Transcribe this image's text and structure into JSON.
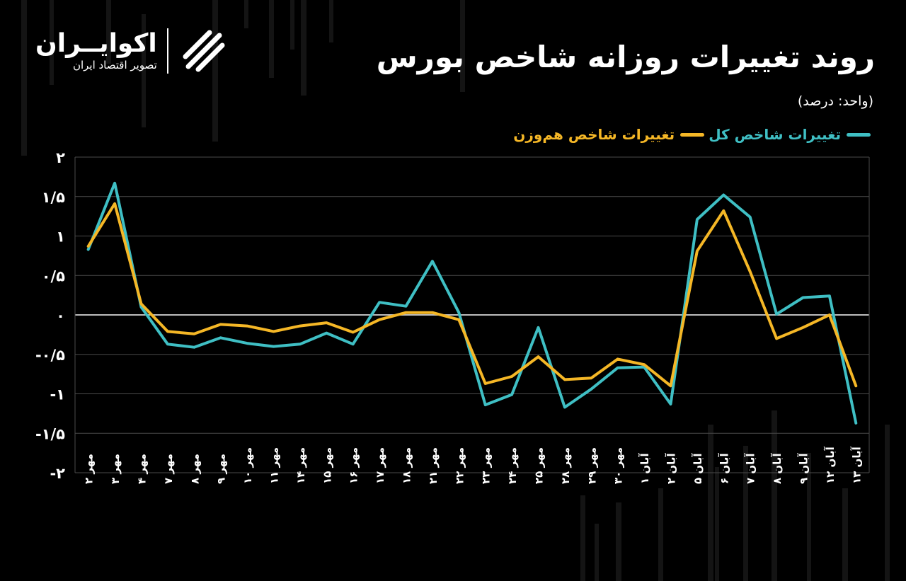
{
  "header": {
    "title": "روند تغییرات روزانه شاخص بورس",
    "unit": "(واحد: درصد)"
  },
  "brand": {
    "name": "اکوایــران",
    "tagline": "تصویر اقتصاد ایران",
    "logo_icon": "ecoiran-swirl-icon"
  },
  "colors": {
    "background": "#000000",
    "total_index": "#3fbfc4",
    "equal_weight_index": "#f5b726",
    "grid": "#4a4a4a",
    "zero_line": "#bdbdbd",
    "text": "#ffffff"
  },
  "chart_data": {
    "type": "line",
    "title": "روند تغییرات روزانه شاخص بورس",
    "subtitle": "(واحد: درصد)",
    "xlabel": "",
    "ylabel": "",
    "ylim": [
      -2,
      2
    ],
    "yticks": [
      2,
      1.5,
      1,
      0.5,
      0,
      -0.5,
      -1,
      -1.5,
      -2
    ],
    "ytick_labels": [
      "۲",
      "۱/۵",
      "۱",
      "۰/۵",
      "۰",
      "-۰/۵",
      "-۱",
      "-۱/۵",
      "-۲"
    ],
    "grid": true,
    "legend_position": "top-right",
    "categories": [
      "مهر ۲",
      "مهر ۳",
      "مهر ۴",
      "مهر ۷",
      "مهر ۸",
      "مهر ۹",
      "مهر ۱۰",
      "مهر ۱۱",
      "مهر ۱۴",
      "مهر ۱۵",
      "مهر ۱۶",
      "مهر ۱۷",
      "مهر ۱۸",
      "مهر ۲۱",
      "مهر ۲۲",
      "مهر ۲۳",
      "مهر ۲۴",
      "مهر ۲۵",
      "مهر ۲۸",
      "مهر ۲۹",
      "مهر ۳۰",
      "آبان ۱",
      "آبان ۲",
      "آبان ۵",
      "آبان ۶",
      "آبان ۷",
      "آبان ۸",
      "آبان ۹",
      "آبان ۱۲",
      "آبان ۱۳"
    ],
    "series": [
      {
        "name": "تغییرات شاخص کل",
        "color": "#3fbfc4",
        "values": [
          0.83,
          1.67,
          0.1,
          -0.37,
          -0.41,
          -0.29,
          -0.36,
          -0.4,
          -0.37,
          -0.23,
          -0.37,
          0.16,
          0.11,
          0.68,
          0.03,
          -1.14,
          -1.01,
          -0.16,
          -1.17,
          -0.94,
          -0.67,
          -0.66,
          -1.13,
          1.21,
          1.52,
          1.24,
          0.01,
          0.22,
          0.24,
          -1.37
        ]
      },
      {
        "name": "تغییرات شاخص هم‌وزن",
        "color": "#f5b726",
        "values": [
          0.87,
          1.41,
          0.14,
          -0.21,
          -0.24,
          -0.12,
          -0.14,
          -0.21,
          -0.14,
          -0.1,
          -0.22,
          -0.06,
          0.03,
          0.03,
          -0.06,
          -0.87,
          -0.78,
          -0.53,
          -0.82,
          -0.8,
          -0.56,
          -0.63,
          -0.9,
          0.81,
          1.32,
          0.55,
          -0.3,
          -0.16,
          0.0,
          -0.9
        ]
      }
    ]
  }
}
